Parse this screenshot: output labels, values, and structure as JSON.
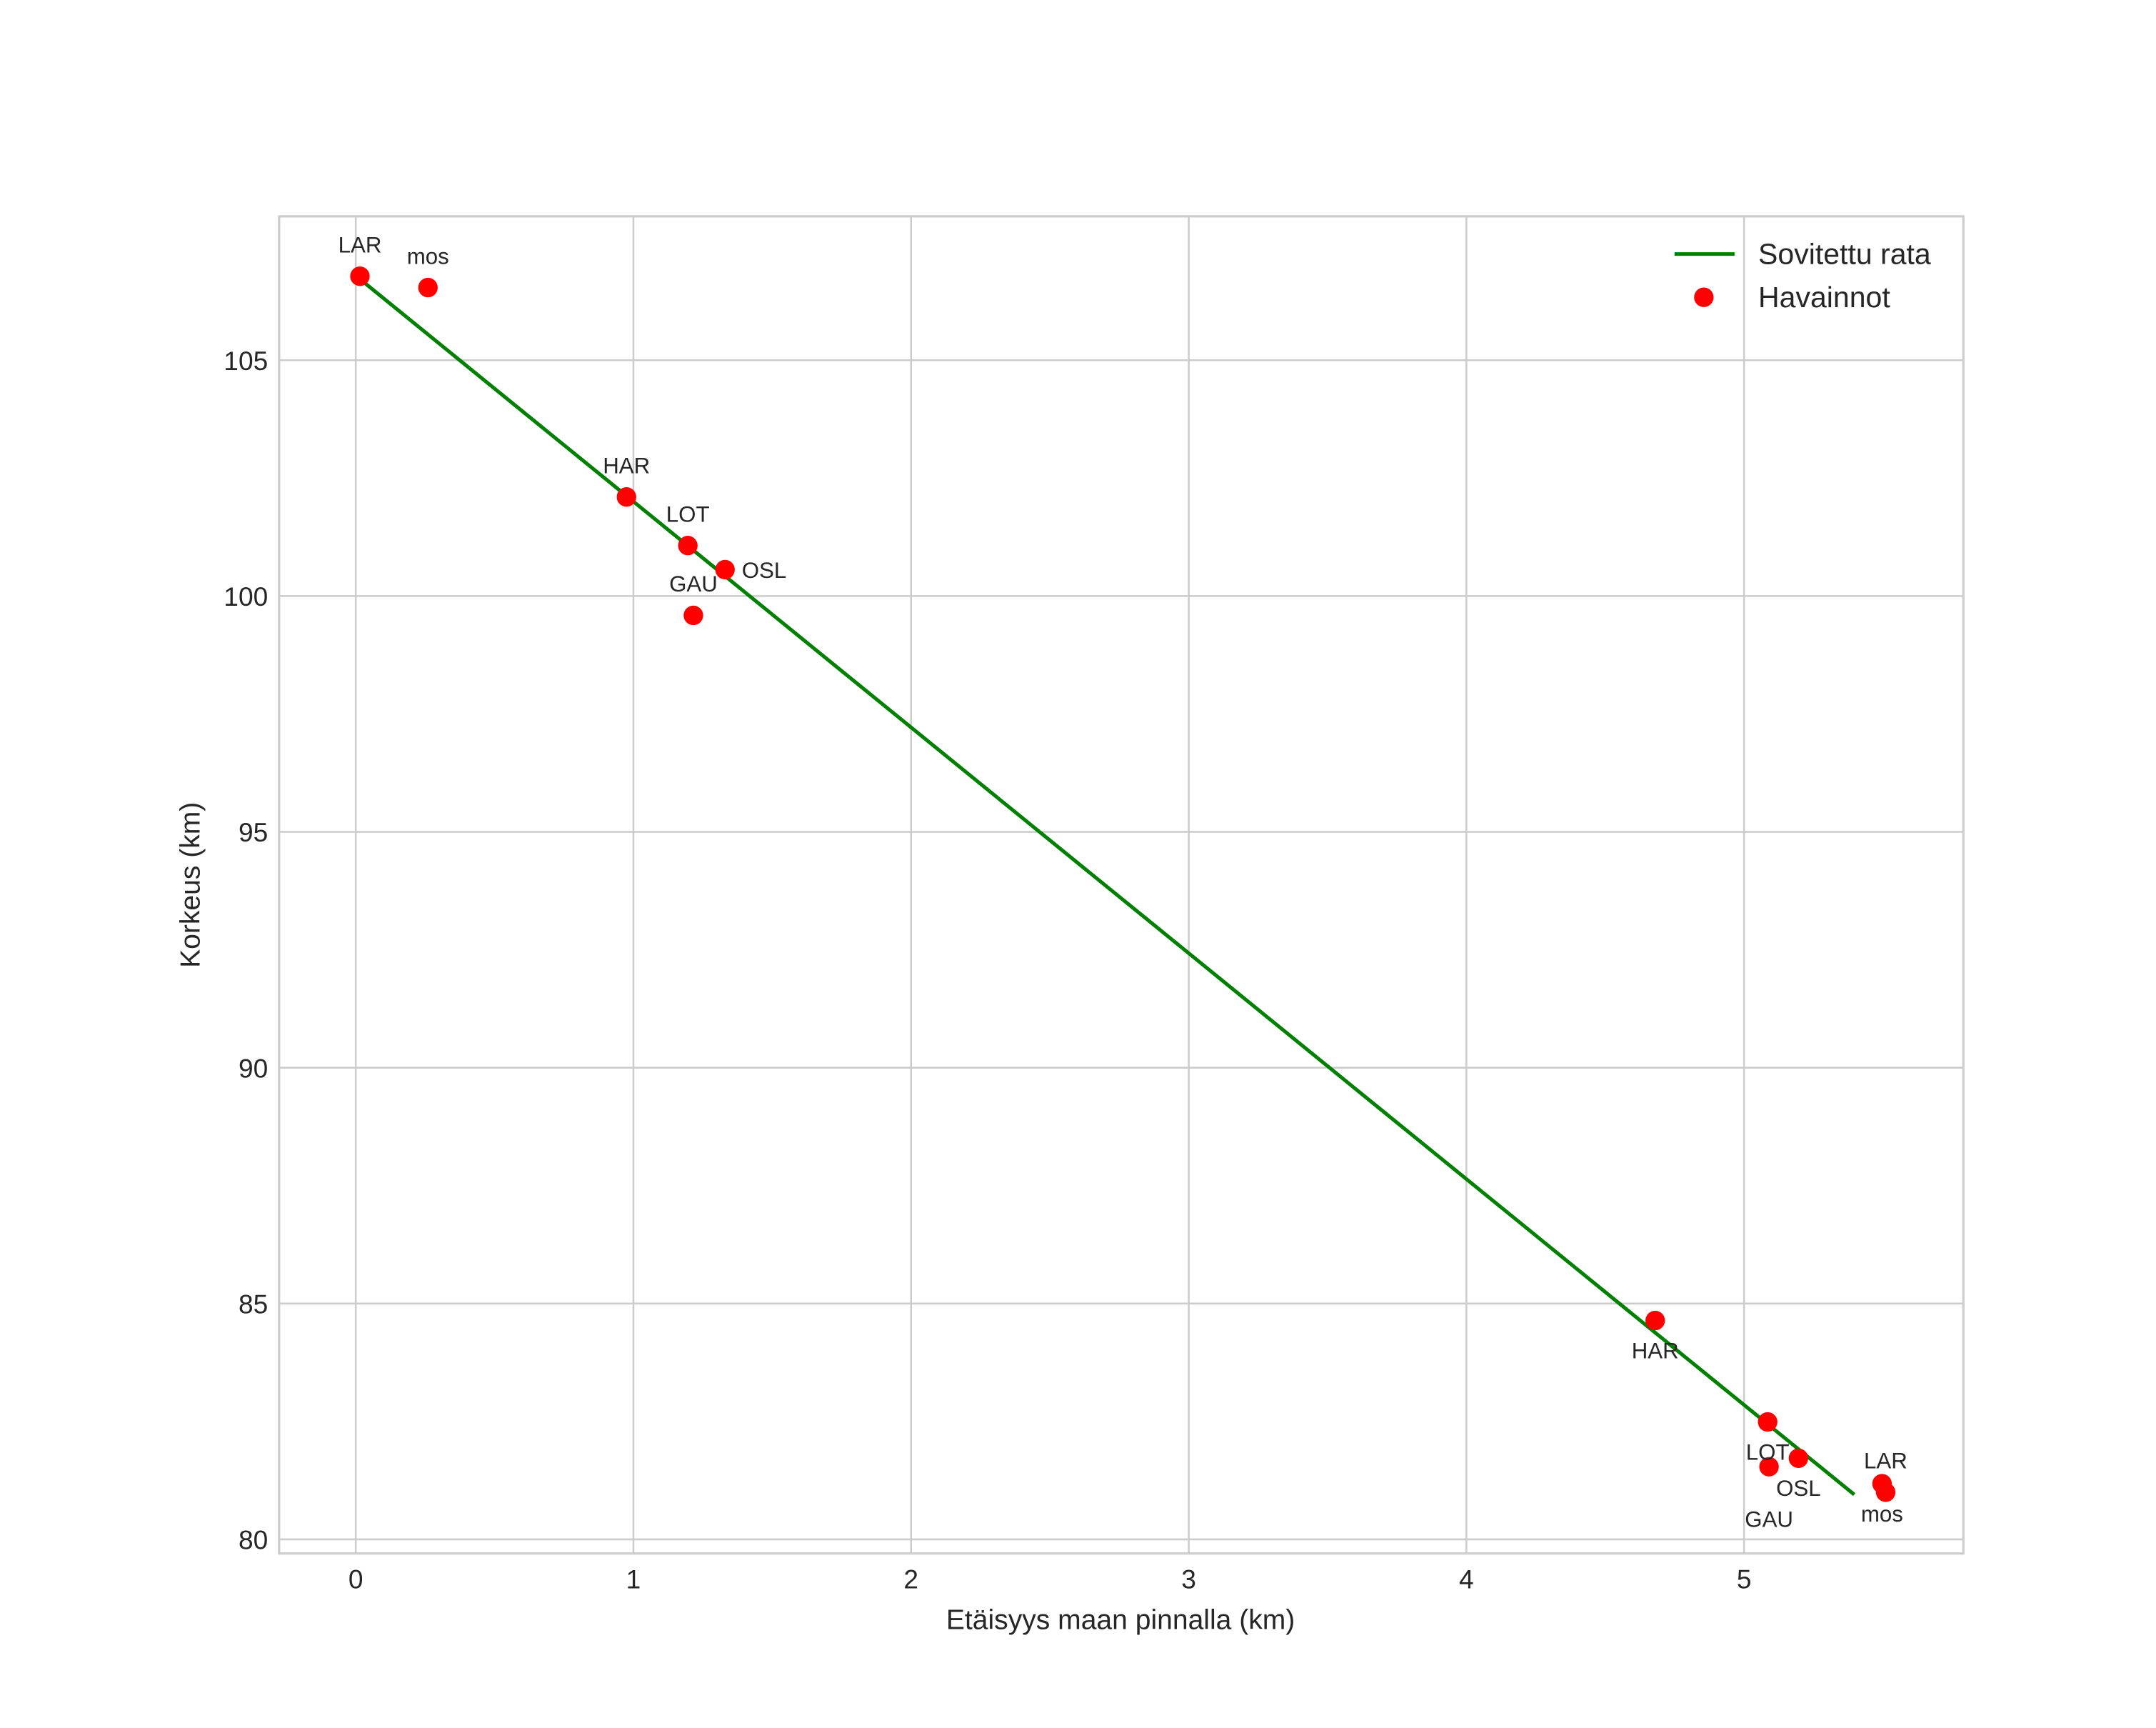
{
  "chart_data": {
    "type": "scatter",
    "title": "",
    "xlabel": "Etäisyys maan pinnalla (km)",
    "ylabel": "Korkeus (km)",
    "xlim": [
      -0.276,
      5.79
    ],
    "ylim": [
      79.7,
      108.05
    ],
    "xticks": [
      0,
      1,
      2,
      3,
      4,
      5
    ],
    "yticks": [
      80,
      85,
      90,
      95,
      100,
      105
    ],
    "grid": true,
    "legend": {
      "placement": "top-right",
      "entries": [
        "Sovitettu rata",
        "Havainnot"
      ]
    },
    "series": [
      {
        "name": "Sovitettu rata",
        "kind": "line",
        "color": "#008000",
        "points": [
          [
            0.015,
            106.72
          ],
          [
            5.397,
            80.95
          ]
        ]
      },
      {
        "name": "Havainnot",
        "kind": "scatter",
        "color": "#ff0000",
        "groups": [
          {
            "label_position": "above",
            "points": [
              {
                "label": "LAR",
                "x": 0.015,
                "y": 106.78
              },
              {
                "label": "mos",
                "x": 0.26,
                "y": 106.54
              },
              {
                "label": "HAR",
                "x": 0.975,
                "y": 102.1
              },
              {
                "label": "LOT",
                "x": 1.196,
                "y": 101.07
              },
              {
                "label": "OSL",
                "x": 1.33,
                "y": 100.56
              },
              {
                "label": "GAU",
                "x": 1.216,
                "y": 99.59
              }
            ]
          },
          {
            "label_position": "below",
            "points": [
              {
                "label": "HAR",
                "x": 4.68,
                "y": 84.64
              },
              {
                "label": "LOT",
                "x": 5.085,
                "y": 82.49
              },
              {
                "label": "OSL",
                "x": 5.196,
                "y": 81.72
              },
              {
                "label": "GAU",
                "x": 5.09,
                "y": 81.54
              },
              {
                "label": "mos",
                "x": 5.497,
                "y": 81.18
              },
              {
                "label": "LAR",
                "x": 5.51,
                "y": 81.0
              }
            ]
          }
        ]
      }
    ]
  }
}
